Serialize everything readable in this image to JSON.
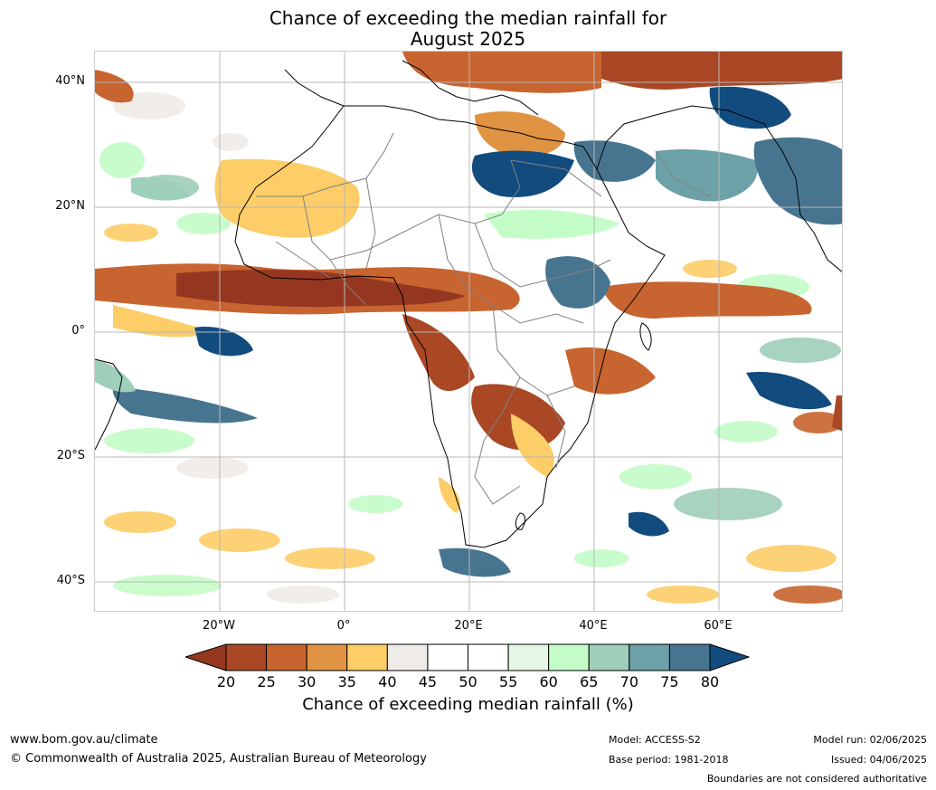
{
  "title_line1": "Chance of exceeding the median rainfall for",
  "title_line2": "August 2025",
  "latitude_labels": [
    "40°N",
    "20°N",
    "0°",
    "20°S",
    "40°S"
  ],
  "longitude_labels": [
    "20°W",
    "0°",
    "20°E",
    "40°E",
    "60°E"
  ],
  "colorbar": {
    "ticks": [
      "20",
      "25",
      "30",
      "35",
      "40",
      "45",
      "50",
      "55",
      "60",
      "65",
      "70",
      "75",
      "80"
    ],
    "label": "Chance of exceeding median rainfall (%)",
    "colors": [
      "#953720",
      "#aa4725",
      "#c8642f",
      "#df9343",
      "#fdcd68",
      "#efece8",
      "#ffffff",
      "#ffffff",
      "#e6f6e8",
      "#c4fcc7",
      "#9ecfba",
      "#6ca1a8",
      "#47758f",
      "#124c7f"
    ]
  },
  "footer": {
    "website": "www.bom.gov.au/climate",
    "copyright": "© Commonwealth of Australia 2025, Australian Bureau of Meteorology",
    "model": "Model: ACCESS-S2",
    "base_period": "Base period: 1981-2018",
    "model_run": "Model run: 02/06/2025",
    "issued": "Issued: 04/06/2025",
    "disclaimer": "Boundaries are not considered authoritative"
  }
}
